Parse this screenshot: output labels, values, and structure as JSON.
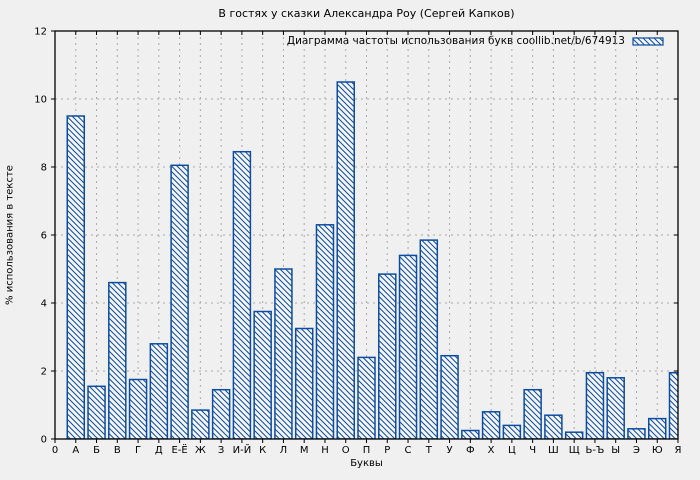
{
  "chart_data": {
    "type": "bar",
    "title": "В гостях у сказки Александра Роу (Сергей Капков)",
    "legend_label": "Диаграмма частоты использования букв coollib.net/b/674913",
    "legend_position": "top-right-inside",
    "xlabel": "Буквы",
    "ylabel": "% использования в тексте",
    "x_origin_tick": "0",
    "categories": [
      "А",
      "Б",
      "В",
      "Г",
      "Д",
      "Е-Ё",
      "Ж",
      "З",
      "И-Й",
      "К",
      "Л",
      "М",
      "Н",
      "О",
      "П",
      "Р",
      "С",
      "Т",
      "У",
      "Ф",
      "Х",
      "Ц",
      "Ч",
      "Ш",
      "Щ",
      "Ь-Ъ",
      "Ы",
      "Э",
      "Ю",
      "Я"
    ],
    "values": [
      9.5,
      1.55,
      4.6,
      1.75,
      2.8,
      8.05,
      0.85,
      1.45,
      8.45,
      3.75,
      5.0,
      3.25,
      6.3,
      10.5,
      2.4,
      4.85,
      5.4,
      5.85,
      2.45,
      0.25,
      0.8,
      0.4,
      1.45,
      0.7,
      0.2,
      1.95,
      1.8,
      0.3,
      0.6,
      1.95
    ],
    "ylim": [
      0,
      12
    ],
    "yticks": [
      0,
      2,
      4,
      6,
      8,
      10,
      12
    ],
    "grid": true,
    "style": {
      "bar_edge_color": "#0c4da2",
      "bar_fill_color": "#f5f5f5",
      "hatch": "backslash-diagonal",
      "grid_color": "#a9a9a9",
      "axis_color": "#000000",
      "background_color": "#f0f0f0"
    }
  }
}
